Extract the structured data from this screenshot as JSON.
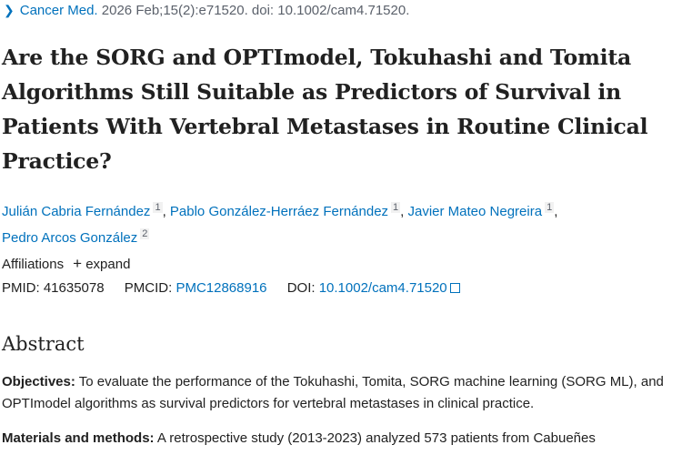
{
  "citation": {
    "journal": "Cancer Med.",
    "details": "2026 Feb;15(2):e71520. doi: 10.1002/cam4.71520."
  },
  "title": "Are the SORG and OPTImodel, Tokuhashi and Tomita Algorithms Still Suitable as Predictors of Survival in Patients With Vertebral Metastases in Routine Clinical Practice?",
  "authors": [
    {
      "name": "Julián Cabria Fernández",
      "aff": "1"
    },
    {
      "name": "Pablo González-Herráez Fernández",
      "aff": "1"
    },
    {
      "name": "Javier Mateo Negreira",
      "aff": "1"
    },
    {
      "name": "Pedro Arcos González",
      "aff": "2"
    }
  ],
  "affiliations": {
    "label": "Affiliations",
    "expand": "expand"
  },
  "ids": {
    "pmid_label": "PMID:",
    "pmid": "41635078",
    "pmcid_label": "PMCID:",
    "pmcid": "PMC12868916",
    "doi_label": "DOI:",
    "doi": "10.1002/cam4.71520"
  },
  "abstract": {
    "heading": "Abstract",
    "objectives_label": "Objectives:",
    "objectives": "To evaluate the performance of the Tokuhashi, Tomita, SORG machine learning (SORG ML), and OPTImodel algorithms as survival predictors for vertebral metastases in clinical practice.",
    "methods_label": "Materials and methods:",
    "methods": "A retrospective study (2013-2023) analyzed 573 patients from Cabueñes"
  }
}
